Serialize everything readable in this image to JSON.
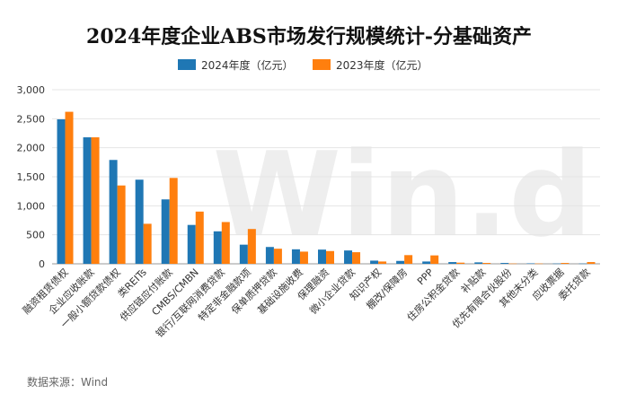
{
  "chart_data": {
    "type": "bar",
    "title": "2024年度企业ABS市场发行规模统计-分基础资产",
    "categories": [
      "融资租赁债权",
      "企业应收账款",
      "一般小额贷款债权",
      "类REITs",
      "供应链应付账款",
      "CMBS/CMBN",
      "银行/互联网消费贷款",
      "特定非金融款项",
      "保单质押贷款",
      "基础设施收费",
      "保理融资",
      "微小企业贷款",
      "知识产权",
      "棚改/保障房",
      "PPP",
      "住房公积金贷款",
      "补贴款",
      "优先有限合伙股份",
      "其他未分类",
      "应收票据",
      "委托贷款"
    ],
    "series": [
      {
        "name": "2024年度（亿元）",
        "color": "#1f77b4",
        "values": [
          2490,
          2180,
          1790,
          1450,
          1110,
          670,
          560,
          330,
          290,
          250,
          245,
          230,
          55,
          50,
          40,
          30,
          25,
          15,
          8,
          5,
          5
        ]
      },
      {
        "name": "2023年度（亿元）",
        "color": "#ff7f0e",
        "values": [
          2620,
          2180,
          1350,
          690,
          1480,
          900,
          720,
          600,
          260,
          210,
          220,
          200,
          40,
          150,
          145,
          20,
          15,
          5,
          5,
          15,
          30
        ]
      }
    ],
    "ylim": [
      0,
      3000
    ],
    "yticks": [
      "0",
      "500",
      "1,000",
      "1,500",
      "2,000",
      "2,500",
      "3,000"
    ],
    "grid": true,
    "legend_position": "top"
  },
  "source": "数据来源：Wind",
  "watermark": "Win.d"
}
